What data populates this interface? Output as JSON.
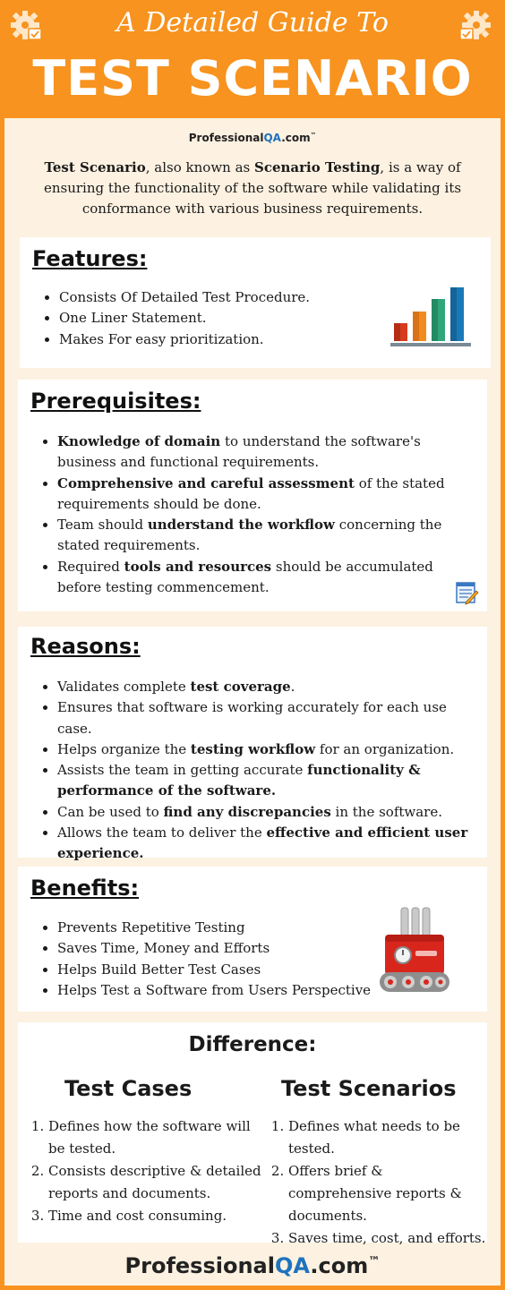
{
  "header": {
    "script_title": "A Detailed Guide To",
    "main_title": "TEST SCENARIO"
  },
  "logo": {
    "prefix": "Professional",
    "highlight": "QA",
    "suffix": ".com",
    "tm": "™"
  },
  "intro": {
    "term1": "Test Scenario",
    "text1": ", also known as ",
    "term2": "Scenario Testing",
    "text2": ", is a way of ensuring the functionality of the software while validating its conformance with various business requirements."
  },
  "features": {
    "title": "Features:",
    "items": [
      "Consists Of Detailed Test Procedure.",
      "One Liner Statement.",
      "Makes For easy prioritization."
    ]
  },
  "prerequisites": {
    "title": "Prerequisites:",
    "items": [
      {
        "bold": "Knowledge of domain",
        "rest": " to understand the software's business and functional requirements."
      },
      {
        "bold": "Comprehensive and careful assessment",
        "rest": " of the stated requirements should be done."
      },
      {
        "pre": "Team should ",
        "bold": "understand the workflow",
        "rest": " concerning the stated requirements."
      },
      {
        "pre": "Required ",
        "bold": "tools and resources",
        "rest": " should be accumulated before testing commencement."
      }
    ]
  },
  "reasons": {
    "title": "Reasons:",
    "items": [
      {
        "pre": "Validates complete ",
        "bold": "test coverage",
        "rest": "."
      },
      {
        "pre": "Ensures that software is working accurately for each use case.",
        "bold": "",
        "rest": ""
      },
      {
        "pre": "Helps organize the ",
        "bold": "testing workflow",
        "rest": " for an organization."
      },
      {
        "pre": "Assists the team in getting accurate ",
        "bold": "functionality & performance of the software.",
        "rest": ""
      },
      {
        "pre": "Can be used to ",
        "bold": "find any discrepancies",
        "rest": " in the software."
      },
      {
        "pre": "Allows the team to deliver the ",
        "bold": "effective and efficient user experience.",
        "rest": ""
      }
    ]
  },
  "benefits": {
    "title": "Benefits:",
    "items": [
      "Prevents Repetitive Testing",
      "Saves Time, Money and Efforts",
      "Helps Build Better Test Cases",
      "Helps Test a Software from Users Perspective"
    ]
  },
  "difference": {
    "title": "Difference:",
    "left": {
      "heading": "Test Cases",
      "items": [
        "Defines how the software will be tested.",
        "Consists descriptive & detailed reports and documents.",
        "Time and cost consuming."
      ]
    },
    "right": {
      "heading": "Test Scenarios",
      "items": [
        "Defines what needs to be tested.",
        "Offers brief & comprehensive reports & documents.",
        "Saves time, cost, and efforts."
      ]
    }
  },
  "colors": {
    "orange": "#f7931e",
    "cream": "#fdf1e1",
    "blue": "#1e73be"
  }
}
